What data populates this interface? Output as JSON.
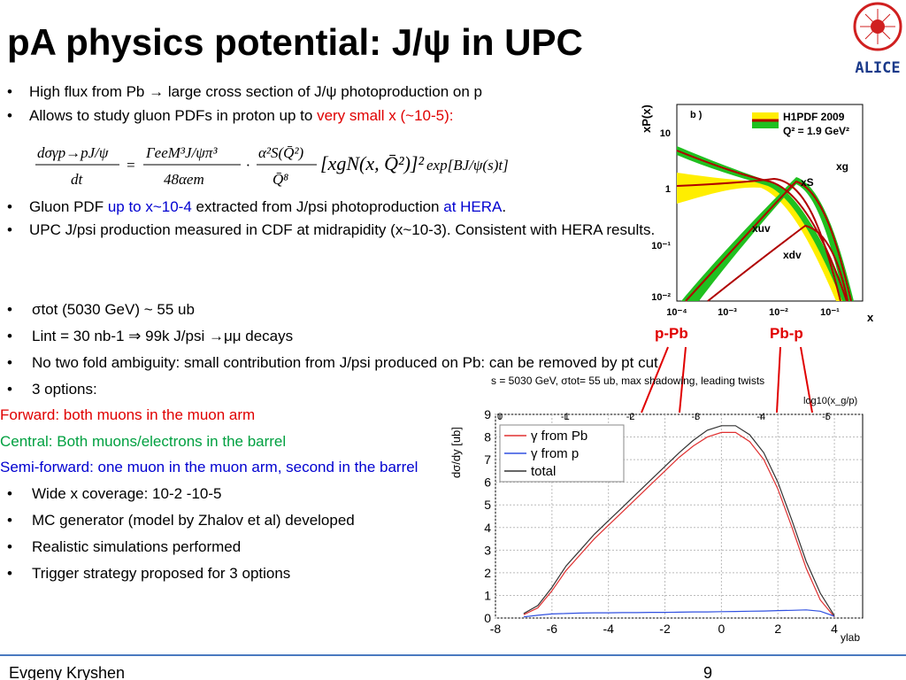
{
  "header": {
    "title": "pA physics potential: J/ψ in UPC",
    "logo": "ALICE"
  },
  "bullets": [
    [
      {
        "text": "High flux from Pb → large cross section of J/ψ photoproduction on p"
      }
    ],
    [
      {
        "text": "Allows to study gluon PDFs in proton up to "
      },
      {
        "text": "very small x (~10-5):",
        "color": "#e00000"
      }
    ],
    [
      {
        "text": "Gluon PDF "
      },
      {
        "text": "up to x~10-4",
        "color": "#0000d0"
      },
      {
        "text": " extracted from J/psi photoproduction "
      },
      {
        "text": "at HERA",
        "color": "#0000d0"
      },
      {
        "text": "."
      }
    ],
    [
      {
        "text": "UPC J/psi production measured in CDF at midrapidity (x~10-3). Consistent with HERA results."
      }
    ],
    [
      {
        "text": "σtot (5030 GeV) ~ 55 ub"
      }
    ],
    [
      {
        "text": "Lint = 30 nb-1 ⇒ 99k J/psi →μμ decays"
      }
    ],
    [
      {
        "text": "No two fold ambiguity: small contribution from J/psi produced on Pb: can be removed by pt cut"
      }
    ],
    [
      {
        "text": "3 options:"
      }
    ],
    [
      {
        "text": "Forward: both muons in the muon arm",
        "color": "#e00000"
      }
    ],
    [
      {
        "text": "Central: Both muons/electrons in the barrel",
        "color": "#00a040"
      }
    ],
    [
      {
        "text": "Semi-forward: one muon in the muon arm, second in the barrel",
        "color": "#0000d0"
      }
    ],
    [
      {
        "text": "Wide x coverage: 10-2 -10-5"
      }
    ],
    [
      {
        "text": "MC generator (model by Zhalov et al) developed"
      }
    ],
    [
      {
        "text": "Realistic simulations performed"
      }
    ],
    [
      {
        "text": "Trigger strategy proposed for 3 options"
      }
    ]
  ],
  "formula": {
    "num": "dσγp→pJ/ψ",
    "den": "dt",
    "eq": "=",
    "num2": "ΓeeM³J/ψπ³",
    "den2": "48αem",
    "dot": "·",
    "num3": "α²S(Q̄²)",
    "den3": "Q̄⁸",
    "bracket": "[xgN(x, Q̄²)]²",
    "exp": "exp[BJ/ψ(s)t]"
  },
  "pdf_plot": {
    "ylabel": "xP(x)",
    "panel": "b )",
    "legend_title": "H1PDF 2009",
    "legend_q": "Q² = 1.9 GeV²",
    "yticks": [
      "10",
      "1",
      "10⁻¹",
      "10⁻²"
    ],
    "xticks": [
      "10⁻⁴",
      "10⁻³",
      "10⁻²",
      "10⁻¹"
    ],
    "xlabel": "x",
    "curves": [
      "xg",
      "xS",
      "xuv",
      "xdv"
    ],
    "labels": [
      "p-Pb",
      "Pb-p"
    ]
  },
  "yield_plot": {
    "title": "s = 5030 GeV, σtot= 55 ub, max shadowing, leading twists",
    "top_label": "log10(x_g/p)",
    "ylabel": "dσ/dy [ub]",
    "xlabel": "ylab",
    "xlim": [
      -8,
      5
    ],
    "ylim": [
      0,
      9
    ],
    "xticks": [
      -8,
      -6,
      -4,
      -2,
      0,
      2,
      4
    ],
    "yticks": [
      0,
      1,
      2,
      3,
      4,
      5,
      6,
      7,
      8,
      9
    ],
    "top_ticks": [
      0,
      -1,
      -2,
      -3,
      -4,
      -5
    ],
    "x": [
      -7,
      -6.5,
      -6,
      -5.5,
      -5,
      -4.5,
      -4,
      -3.5,
      -3,
      -2.5,
      -2,
      -1.5,
      -1,
      -0.5,
      0,
      0.5,
      1,
      1.5,
      2,
      2.5,
      3,
      3.5,
      4
    ],
    "series": [
      {
        "name": "γ from Pb",
        "color": "#e03030",
        "values": [
          0.15,
          0.45,
          1.2,
          2.1,
          2.8,
          3.5,
          4.1,
          4.7,
          5.3,
          5.9,
          6.5,
          7.1,
          7.6,
          8.0,
          8.2,
          8.2,
          7.8,
          7.0,
          5.7,
          4.0,
          2.2,
          0.8,
          0.05
        ]
      },
      {
        "name": "γ from p",
        "color": "#3050e0",
        "values": [
          0.05,
          0.12,
          0.18,
          0.2,
          0.22,
          0.23,
          0.23,
          0.24,
          0.24,
          0.25,
          0.25,
          0.26,
          0.27,
          0.27,
          0.28,
          0.29,
          0.3,
          0.31,
          0.33,
          0.34,
          0.36,
          0.3,
          0.08
        ]
      },
      {
        "name": "total",
        "color": "#333333",
        "values": [
          0.2,
          0.55,
          1.35,
          2.3,
          3.0,
          3.7,
          4.3,
          4.9,
          5.5,
          6.1,
          6.7,
          7.3,
          7.85,
          8.3,
          8.5,
          8.5,
          8.1,
          7.3,
          6.0,
          4.3,
          2.5,
          1.1,
          0.1
        ]
      }
    ]
  },
  "footer": {
    "author": "Evgeny Kryshen",
    "page": "9"
  }
}
